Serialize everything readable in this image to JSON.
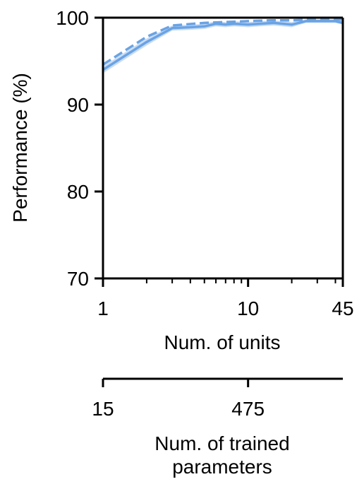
{
  "chart_data": {
    "type": "line",
    "xscale": "log",
    "xlim": [
      1,
      45
    ],
    "ylim": [
      70,
      100
    ],
    "ylabel": "Performance (%)",
    "xlabel": "Num. of units",
    "x_ticks": [
      {
        "value": 1,
        "label": "1"
      },
      {
        "value": 10,
        "label": "10"
      },
      {
        "value": 45,
        "label": "45"
      }
    ],
    "y_ticks": [
      {
        "value": 70,
        "label": "70"
      },
      {
        "value": 80,
        "label": "80"
      },
      {
        "value": 90,
        "label": "90"
      },
      {
        "value": 100,
        "label": "100"
      }
    ],
    "secondary_axis": {
      "label_lines": [
        "Num. of trained",
        "parameters"
      ],
      "ticks": [
        {
          "units": 1,
          "label": "15"
        },
        {
          "units": 10,
          "label": "475"
        }
      ]
    },
    "color": "#6aa3e4",
    "band_color": "#c9dcf5",
    "grid": false,
    "series": [
      {
        "style": "solid",
        "x": [
          1,
          2,
          3,
          4,
          5,
          6,
          7,
          8,
          10,
          12,
          15,
          20,
          25,
          30,
          40,
          45
        ],
        "y": [
          94.0,
          97.2,
          98.8,
          98.9,
          99.0,
          99.3,
          99.2,
          99.3,
          99.2,
          99.3,
          99.4,
          99.2,
          99.6,
          99.6,
          99.6,
          99.4
        ],
        "band": [
          0.4,
          0.4,
          0.3,
          0.3,
          0.3,
          0.3,
          0.3,
          0.3,
          0.3,
          0.3,
          0.3,
          0.3,
          0.2,
          0.2,
          0.2,
          0.2
        ]
      },
      {
        "style": "dashed",
        "x": [
          1,
          2,
          3,
          5,
          10,
          15,
          20,
          30,
          45
        ],
        "y": [
          94.6,
          97.8,
          99.1,
          99.4,
          99.6,
          99.7,
          99.7,
          99.8,
          99.8
        ]
      }
    ]
  }
}
